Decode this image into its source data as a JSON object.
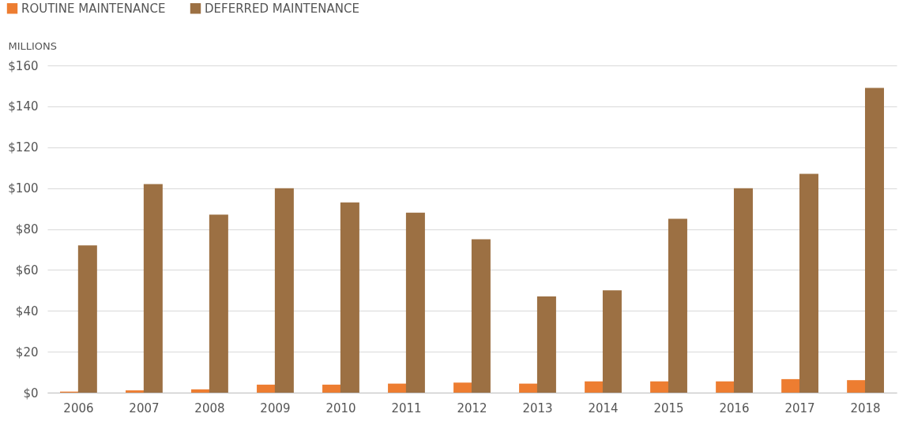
{
  "chart_data": {
    "type": "bar",
    "ylabel": "MILLIONS",
    "categories": [
      "2006",
      "2007",
      "2008",
      "2009",
      "2010",
      "2011",
      "2012",
      "2013",
      "2014",
      "2015",
      "2016",
      "2017",
      "2018"
    ],
    "series": [
      {
        "name": "ROUTINE MAINTENANCE",
        "color": "#ed7d31",
        "values": [
          0.5,
          1.1,
          1.6,
          3.9,
          3.9,
          4.4,
          4.9,
          4.4,
          5.5,
          5.5,
          5.5,
          6.6,
          6.1
        ]
      },
      {
        "name": "DEFERRED MAINTENANCE",
        "color": "#9c7043",
        "values": [
          72,
          102,
          87,
          100,
          93,
          88,
          75,
          47,
          50,
          85,
          100,
          107,
          149
        ]
      }
    ],
    "ylim": [
      0,
      160
    ],
    "yticks": [
      {
        "value": 0,
        "label": "$0"
      },
      {
        "value": 20,
        "label": "$20"
      },
      {
        "value": 40,
        "label": "$40"
      },
      {
        "value": 60,
        "label": "$60"
      },
      {
        "value": 80,
        "label": "$80"
      },
      {
        "value": 100,
        "label": "$100"
      },
      {
        "value": 120,
        "label": "$120"
      },
      {
        "value": 140,
        "label": "$140"
      },
      {
        "value": 160,
        "label": "$160"
      }
    ],
    "grid": "y",
    "legend": "top left"
  }
}
